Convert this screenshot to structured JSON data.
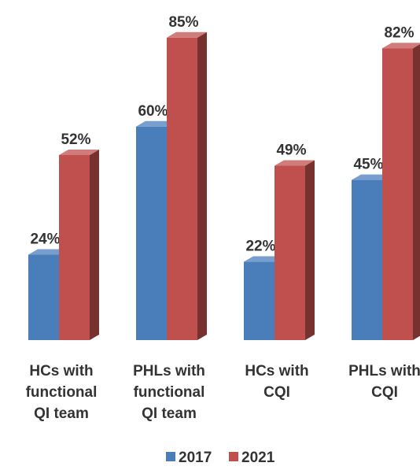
{
  "chart_data": {
    "type": "bar3d",
    "categories": [
      [
        "HCs with",
        "functional",
        "QI team"
      ],
      [
        "PHLs with",
        "functional",
        "QI team"
      ],
      [
        "HCs with",
        "CQI"
      ],
      [
        "PHLs with",
        "CQI"
      ]
    ],
    "series": [
      {
        "name": "2017",
        "color": "#4a7ebb",
        "values": [
          24,
          60,
          22,
          45
        ],
        "value_labels": [
          "24%",
          "60%",
          "22%",
          "45%"
        ]
      },
      {
        "name": "2021",
        "color": "#c0504d",
        "values": [
          52,
          85,
          49,
          82
        ],
        "value_labels": [
          "52%",
          "85%",
          "49%",
          "82%"
        ]
      }
    ],
    "legend": "bottom"
  }
}
